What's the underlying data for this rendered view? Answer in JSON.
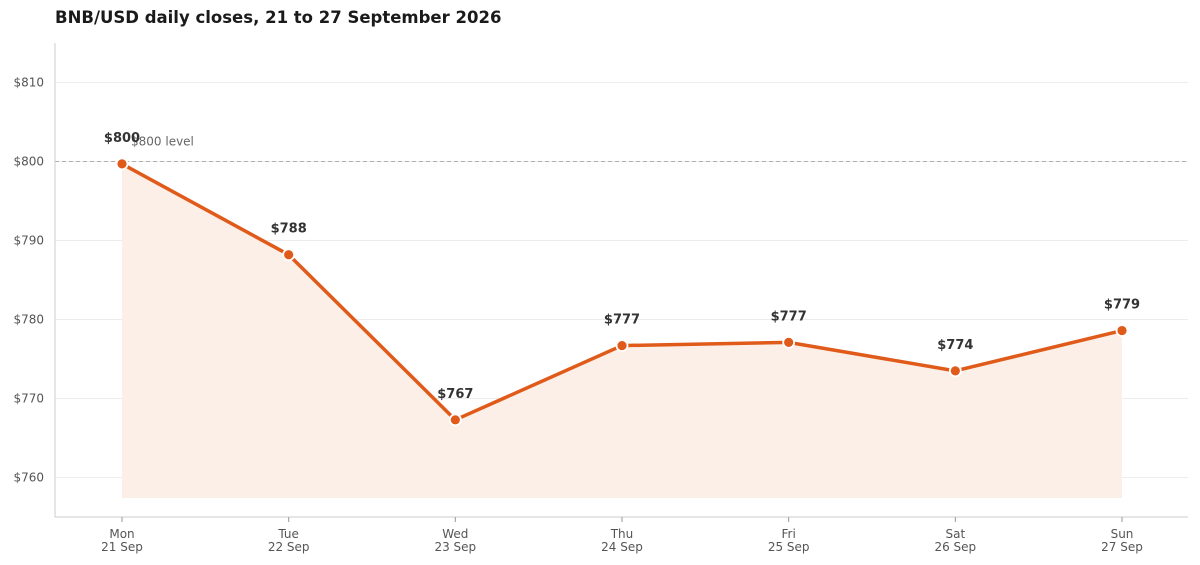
{
  "chart_data": {
    "type": "line",
    "title": "BNB/USD daily closes, 21 to 27 September 2026",
    "xlabel": "",
    "ylabel": "",
    "categories": [
      [
        "Mon",
        "21 Sep"
      ],
      [
        "Tue",
        "22 Sep"
      ],
      [
        "Wed",
        "23 Sep"
      ],
      [
        "Thu",
        "24 Sep"
      ],
      [
        "Fri",
        "25 Sep"
      ],
      [
        "Sat",
        "26 Sep"
      ],
      [
        "Sun",
        "27 Sep"
      ]
    ],
    "values": [
      799.7,
      788.2,
      767.3,
      776.7,
      777.1,
      773.5,
      778.6
    ],
    "data_labels": [
      "$800",
      "$788",
      "$767",
      "$777",
      "$777",
      "$774",
      "$779"
    ],
    "ylim": [
      755,
      815
    ],
    "yticks": [
      760,
      770,
      780,
      790,
      800,
      810
    ],
    "ytick_labels": [
      "$760",
      "$770",
      "$780",
      "$790",
      "$800",
      "$810"
    ],
    "reference_line": {
      "value": 800,
      "label": "$800 level"
    },
    "area_baseline": 757.4,
    "grid": "horizontal",
    "colors": {
      "line": "#e05a1a",
      "area": "#fcefe7",
      "grid": "#ececec",
      "reference": "#b0b0b0",
      "axis": "#cccccc"
    }
  }
}
